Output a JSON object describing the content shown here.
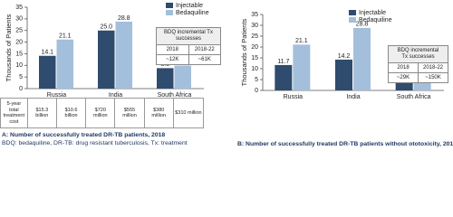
{
  "chart_data": [
    {
      "type": "bar",
      "ylabel": "Thousands of Patients",
      "categories": [
        "Russia",
        "India",
        "South Africa"
      ],
      "series": [
        {
          "name": "Injectable",
          "color": "#2f4b6e",
          "values": [
            14.1,
            25.0,
            8.8
          ],
          "value_labels": [
            "14.1",
            "25.0",
            "8.8"
          ]
        },
        {
          "name": "Bedaquiline",
          "color": "#a3bfdb",
          "values": [
            21.1,
            28.8,
            9.9
          ],
          "value_labels": [
            "21.1",
            "28.8",
            "9.9"
          ]
        }
      ],
      "ylim": [
        0,
        35
      ],
      "yticks": [
        0,
        5,
        10,
        15,
        20,
        25,
        30,
        35
      ],
      "inset": {
        "title": "BDQ incremental Tx successes",
        "header": [
          "2018",
          "2018-22"
        ],
        "row": [
          "~12K",
          "~61K"
        ]
      },
      "cost_table": {
        "label": "5-year total treatment cost",
        "values": [
          "$15.3 billion",
          "$10.6 billion",
          "$720 million",
          "$555 million",
          "$380 million",
          "$310 million"
        ]
      },
      "caption": "A: Number of successfully treated DR-TB patients, 2018",
      "footnote": "BDQ: bedaquiline, DR-TB: drug resistant tuberculosis, Tx: treatment"
    },
    {
      "type": "bar",
      "ylabel": "Thousands of Patients",
      "categories": [
        "Russia",
        "India",
        "South Africa"
      ],
      "series": [
        {
          "name": "Injectable",
          "color": "#2f4b6e",
          "values": [
            11.7,
            14.2,
            5.0
          ],
          "value_labels": [
            "11.7",
            "14.2",
            "5.0"
          ]
        },
        {
          "name": "Bedaquiline",
          "color": "#a3bfdb",
          "values": [
            21.1,
            28.8,
            9.9
          ],
          "value_labels": [
            "21.1",
            "28.8",
            "9.9"
          ]
        }
      ],
      "ylim": [
        0,
        35
      ],
      "yticks": [
        0,
        5,
        10,
        15,
        20,
        25,
        30,
        35
      ],
      "inset": {
        "title": "BDQ incremental Tx successes",
        "header": [
          "2018",
          "2018-22"
        ],
        "row": [
          "~29K",
          "~150K"
        ]
      },
      "caption": "B: Number of successfully treated DR-TB patients without ototoxicity, 2018"
    }
  ]
}
